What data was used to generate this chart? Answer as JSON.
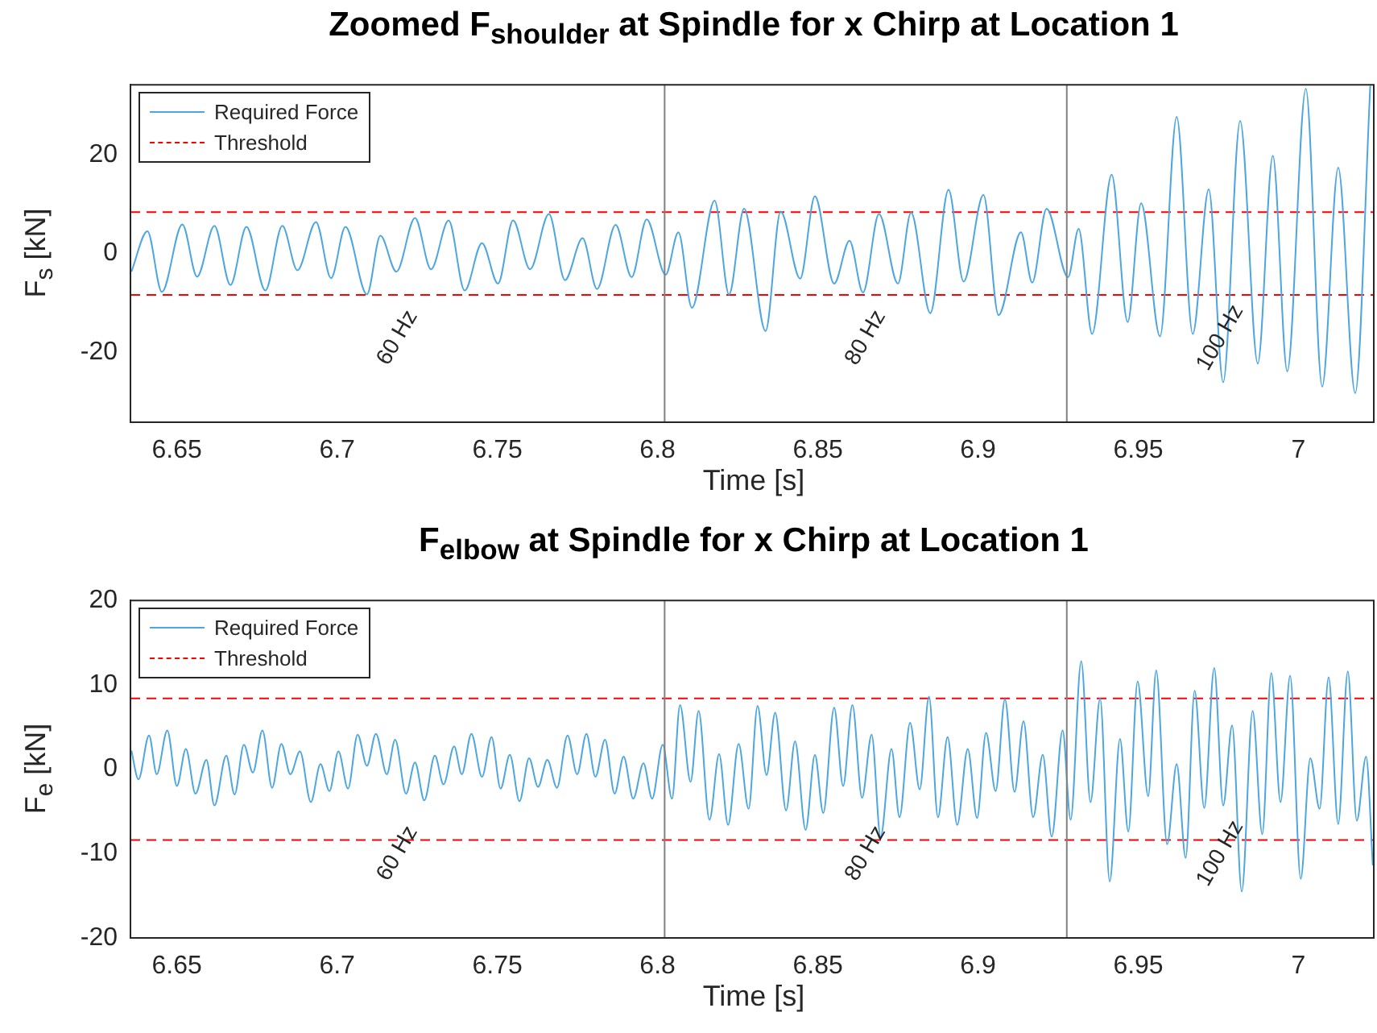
{
  "chart_data": [
    {
      "type": "line",
      "title": "Zoomed F$_{shoulder}$ at Spindle for x Chirp at Location 1",
      "xlabel": "Time [s]",
      "ylabel": "F$_{s}$ [kN]",
      "xlim": [
        6.6355,
        7.0235
      ],
      "ylim": [
        -34.2,
        34.2
      ],
      "xticks": [
        6.65,
        6.7,
        6.75,
        6.8,
        6.85,
        6.9,
        6.95,
        7
      ],
      "yticks": [
        -20,
        0,
        20
      ],
      "legend": "top left",
      "marker": "none",
      "series": [
        {
          "name": "Required Force",
          "color": "#4da6e0",
          "type": "line",
          "line_style": "solid",
          "x": [
            6.6358,
            6.6408,
            6.6453,
            6.6517,
            6.6563,
            6.6617,
            6.6667,
            6.6717,
            6.6776,
            6.6829,
            6.6876,
            6.6934,
            6.6981,
            6.7026,
            6.7093,
            6.7135,
            6.7185,
            6.7243,
            6.7293,
            6.7348,
            6.7398,
            6.7452,
            6.7502,
            6.7549,
            6.7602,
            6.7661,
            6.7711,
            6.7766,
            6.7811,
            6.7869,
            6.7919,
            6.7966,
            6.8025,
            6.8065,
            6.8107,
            6.8178,
            6.8223,
            6.827,
            6.8337,
            6.8384,
            6.8445,
            6.8491,
            6.8551,
            6.8599,
            6.8641,
            6.8691,
            6.875,
            6.8791,
            6.8851,
            6.8908,
            6.8955,
            6.9017,
            6.9064,
            6.9134,
            6.9169,
            6.9214,
            6.9281,
            6.9314,
            6.9356,
            6.9417,
            6.9467,
            6.9509,
            6.9568,
            6.962,
            6.967,
            6.972,
            6.9765,
            6.9818,
            6.9873,
            6.992,
            6.9965,
            7.0023,
            7.0074,
            7.0124,
            7.0177,
            7.0224
          ],
          "values": [
            -3.7,
            4.5,
            -7.8,
            5.9,
            -4.7,
            5.6,
            -6.4,
            5.4,
            -7.5,
            5.6,
            -3.4,
            6.4,
            -5.0,
            5.4,
            -8.3,
            3.6,
            -3.7,
            7.2,
            -3.2,
            6.7,
            -7.5,
            2.1,
            -6.1,
            6.7,
            -3.2,
            8.0,
            -5.4,
            3.1,
            -7.2,
            5.8,
            -4.8,
            6.9,
            -4.3,
            4.3,
            -11.0,
            10.7,
            -8.3,
            9.1,
            -15.7,
            8.5,
            -5.1,
            11.6,
            -6.1,
            2.6,
            -7.9,
            8.0,
            -6.1,
            8.3,
            -12.1,
            12.9,
            -5.7,
            11.9,
            -12.5,
            4.3,
            -5.9,
            9.1,
            -4.8,
            5.0,
            -16.3,
            16.0,
            -13.9,
            10.2,
            -16.8,
            27.7,
            -16.3,
            13.0,
            -26.1,
            26.9,
            -22.3,
            19.8,
            -23.9,
            33.4,
            -27.0,
            17.4,
            -28.3,
            34.0
          ]
        },
        {
          "name": "Threshold",
          "color": "#ff0000",
          "type": "line",
          "line_style": "dashed",
          "x": [
            6.6355,
            7.0235
          ],
          "values": [
            8.4,
            8.4
          ]
        },
        {
          "color": "#ff0000",
          "type": "line",
          "line_style": "dashed",
          "x": [
            6.6355,
            7.0235
          ],
          "values": [
            -8.4,
            -8.4
          ]
        }
      ],
      "ref_lines": [
        {
          "axis": "x",
          "value": 6.8022,
          "color": "#808080"
        },
        {
          "axis": "x",
          "value": 6.9277,
          "color": "#808080"
        }
      ],
      "annotations": [
        "60 Hz",
        "80 Hz",
        "100 Hz"
      ]
    },
    {
      "type": "line",
      "title": "F$_{elbow}$ at Spindle for x Chirp at Location 1",
      "xlabel": "Time [s]",
      "ylabel": "F$_{e}$ [kN]",
      "xlim": [
        6.6355,
        7.0235
      ],
      "ylim": [
        -20,
        20
      ],
      "xticks": [
        6.65,
        6.7,
        6.75,
        6.8,
        6.85,
        6.9,
        6.95,
        7
      ],
      "yticks": [
        -20,
        -10,
        0,
        10,
        20
      ],
      "legend": "top left",
      "marker": "none",
      "series": [
        {
          "name": "Required Force",
          "color": "#4da6e0",
          "type": "line",
          "line_style": "solid",
          "x": [
            6.6358,
            6.638,
            6.6413,
            6.6437,
            6.647,
            6.65,
            6.6528,
            6.6558,
            6.6592,
            6.6617,
            6.6654,
            6.668,
            6.6709,
            6.6737,
            6.6767,
            6.6797,
            6.6826,
            6.6854,
            6.6884,
            6.6918,
            6.6948,
            6.6976,
            6.7004,
            6.7034,
            6.7064,
            6.7093,
            6.7121,
            6.7155,
            6.7181,
            6.7215,
            6.7243,
            6.7272,
            6.7305,
            6.7332,
            6.7365,
            6.7389,
            6.7419,
            6.7452,
            6.7482,
            6.751,
            6.7539,
            6.7569,
            6.7599,
            6.7627,
            6.7656,
            6.7686,
            6.7719,
            6.7749,
            6.7778,
            6.7806,
            6.7836,
            6.7866,
            6.7894,
            6.7924,
            6.7956,
            6.7983,
            6.8016,
            6.8045,
            6.807,
            6.8103,
            6.8128,
            6.8162,
            6.8192,
            6.822,
            6.8253,
            6.8284,
            6.8312,
            6.834,
            6.8367,
            6.8401,
            6.8429,
            6.8462,
            6.8491,
            6.8517,
            6.8551,
            6.8579,
            6.8608,
            6.8638,
            6.8668,
            6.8696,
            6.873,
            6.8755,
            6.8788,
            6.8818,
            6.8847,
            6.8875,
            6.8905,
            6.8935,
            6.8968,
            6.8997,
            6.9025,
            6.9055,
            6.9084,
            6.9114,
            6.9142,
            6.9172,
            6.9202,
            6.923,
            6.9264,
            6.9289,
            6.9322,
            6.9351,
            6.9381,
            6.9411,
            6.9443,
            6.9469,
            6.9498,
            6.9531,
            6.9556,
            6.959,
            6.962,
            6.9648,
            6.9676,
            6.9706,
            6.9737,
            6.9765,
            6.9793,
            6.9823,
            6.9857,
            6.9887,
            6.9915,
            6.9944,
            6.9974,
            7.0007,
            7.0037,
            7.0066,
            7.0094,
            7.0124,
            7.0154,
            7.0182,
            7.0211,
            7.0232
          ],
          "values": [
            2.2,
            -1.2,
            4.0,
            -0.6,
            4.6,
            -2.0,
            2.4,
            -2.9,
            1.1,
            -4.3,
            1.6,
            -3.0,
            2.9,
            -0.4,
            4.6,
            -2.2,
            3.0,
            -0.6,
            2.1,
            -3.9,
            0.6,
            -2.6,
            2.1,
            -2.3,
            4.1,
            0.4,
            4.2,
            -0.6,
            3.5,
            -2.9,
            0.8,
            -3.7,
            1.6,
            -1.8,
            2.7,
            -0.6,
            4.2,
            -0.9,
            3.8,
            -2.3,
            1.7,
            -3.8,
            1.3,
            -2.1,
            1.1,
            -2.2,
            4.0,
            -0.6,
            4.2,
            -0.9,
            3.5,
            -2.9,
            1.5,
            -3.5,
            0.7,
            -3.5,
            2.9,
            -3.5,
            7.6,
            -1.5,
            6.9,
            -6.0,
            1.8,
            -6.6,
            3.0,
            -4.7,
            7.5,
            -0.7,
            6.7,
            -4.9,
            3.3,
            -7.2,
            1.7,
            -5.2,
            7.3,
            -2.0,
            7.6,
            -3.4,
            4.1,
            -8.0,
            2.4,
            -5.7,
            5.5,
            -2.4,
            8.6,
            -5.7,
            3.8,
            -6.6,
            2.4,
            -5.8,
            4.3,
            -2.6,
            8.3,
            -2.7,
            5.7,
            -5.7,
            1.7,
            -8.0,
            4.6,
            -6.0,
            12.8,
            -3.9,
            8.4,
            -13.3,
            3.6,
            -7.4,
            10.4,
            -3.2,
            11.7,
            -8.9,
            0.6,
            -10.5,
            9.3,
            -4.6,
            12.0,
            -4.3,
            5.2,
            -14.5,
            6.9,
            -7.7,
            11.4,
            -3.9,
            11.1,
            -13.0,
            1.3,
            -4.7,
            10.9,
            -6.5,
            11.6,
            -6.1,
            1.5,
            -11.4
          ]
        },
        {
          "name": "Threshold",
          "color": "#ff0000",
          "type": "line",
          "line_style": "dashed",
          "x": [
            6.6355,
            7.0235
          ],
          "values": [
            8.4,
            8.4
          ]
        },
        {
          "color": "#ff0000",
          "type": "line",
          "line_style": "dashed",
          "x": [
            6.6355,
            7.0235
          ],
          "values": [
            -8.4,
            -8.4
          ]
        }
      ],
      "ref_lines": [
        {
          "axis": "x",
          "value": 6.8022,
          "color": "#808080"
        },
        {
          "axis": "x",
          "value": 6.9277,
          "color": "#808080"
        }
      ],
      "annotations": [
        "60 Hz",
        "80 Hz",
        "100 Hz"
      ]
    }
  ]
}
